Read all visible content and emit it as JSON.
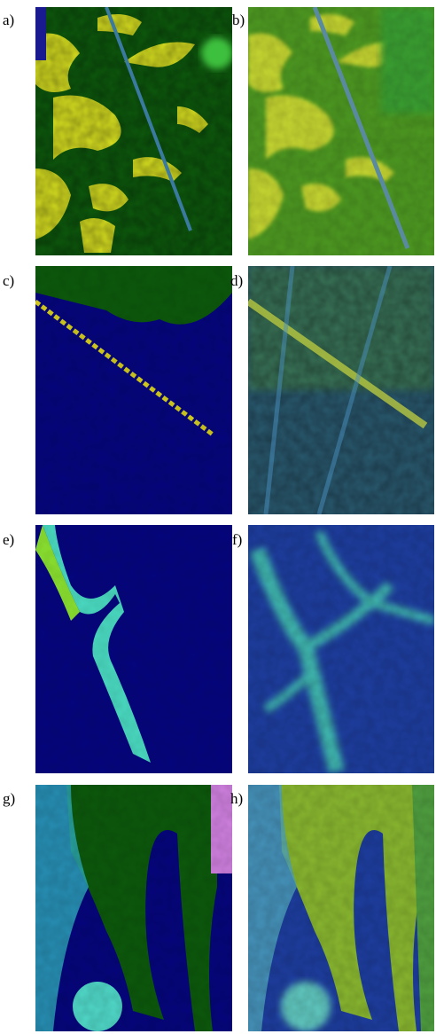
{
  "panels": [
    {
      "label": "a)"
    },
    {
      "label": "b)"
    },
    {
      "label": "c)"
    },
    {
      "label": "d)"
    },
    {
      "label": "e)"
    },
    {
      "label": "f)"
    },
    {
      "label": "g)"
    },
    {
      "label": "h)"
    }
  ]
}
